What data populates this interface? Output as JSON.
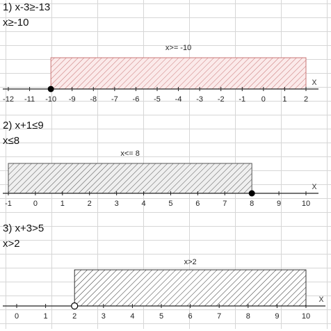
{
  "problems": [
    {
      "equation": "1)  x-3≥-13",
      "answer": "x≥-10",
      "region_label": "x>= -10",
      "axis_letter": "x",
      "ticks": [
        -12,
        -11,
        -10,
        -9,
        -8,
        -7,
        -6,
        -5,
        -4,
        -3,
        -2,
        -1,
        0,
        1,
        2
      ],
      "xmin": -12,
      "xmax": 2,
      "bound": -10,
      "bound_closed": true,
      "shade_from": -10,
      "shade_to": 2,
      "fill_color": "#fbeaea",
      "hatch_color": "#c97777",
      "border_color": "#c97777"
    },
    {
      "equation": "2)  x+1≤9",
      "answer": "x≤8",
      "region_label": "x<= 8",
      "axis_letter": "x",
      "ticks": [
        -1,
        0,
        1,
        2,
        3,
        4,
        5,
        6,
        7,
        8,
        9,
        10
      ],
      "xmin": -1,
      "xmax": 10,
      "bound": 8,
      "bound_closed": true,
      "shade_from": -1,
      "shade_to": 8,
      "fill_color": "#efefef",
      "hatch_color": "#555555",
      "border_color": "#555555"
    },
    {
      "equation": "3)  x+3>5",
      "answer": "x>2",
      "region_label": "x>2",
      "axis_letter": "x",
      "ticks": [
        0,
        1,
        2,
        3,
        4,
        5,
        6,
        7,
        8,
        9,
        10
      ],
      "xmin": 0,
      "xmax": 10,
      "bound": 2,
      "bound_closed": false,
      "shade_from": 2,
      "shade_to": 10,
      "fill_color": "#ffffff",
      "hatch_color": "#333333",
      "border_color": "#333333"
    }
  ]
}
